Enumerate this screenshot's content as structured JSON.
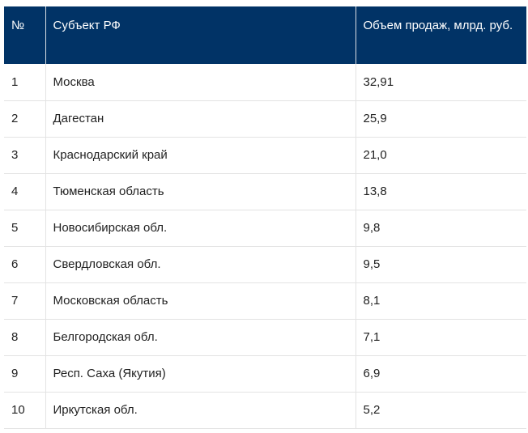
{
  "table": {
    "headers": [
      "№",
      "Субъект РФ",
      "Объем продаж, млрд. руб."
    ],
    "rows": [
      [
        "1",
        "Москва",
        "32,91"
      ],
      [
        "2",
        "Дагестан",
        "25,9"
      ],
      [
        "3",
        "Краснодарский край",
        "21,0"
      ],
      [
        "4",
        "Тюменская область",
        "13,8"
      ],
      [
        "5",
        "Новосибирская обл.",
        "9,8"
      ],
      [
        "6",
        "Свердловская обл.",
        "9,5"
      ],
      [
        "7",
        "Московская область",
        "8,1"
      ],
      [
        "8",
        "Белгородская обл.",
        "7,1"
      ],
      [
        "9",
        "Респ. Саха (Якутия)",
        "6,9"
      ],
      [
        "10",
        "Иркутская обл.",
        "5,2"
      ]
    ]
  },
  "colors": {
    "header_bg": "#013366",
    "header_text": "#ffffff",
    "cell_text": "#222222",
    "grid": "#e3e3e3"
  }
}
